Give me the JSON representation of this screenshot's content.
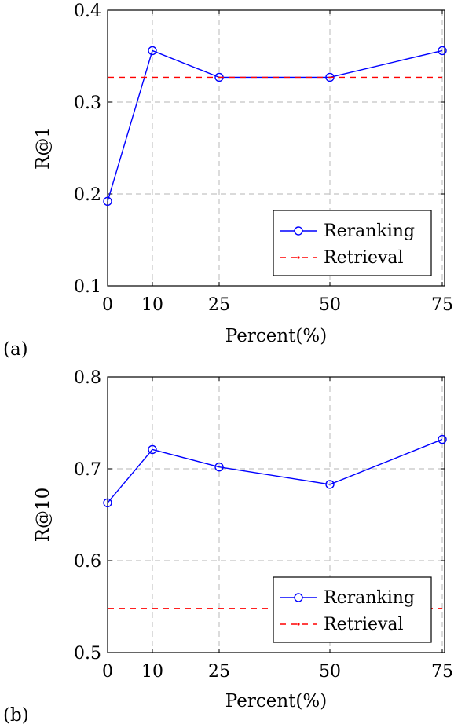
{
  "chart_data": [
    {
      "type": "line",
      "panel_label": "(a)",
      "xlabel": "Percent(%)",
      "ylabel": "R@1",
      "x": [
        0,
        10,
        25,
        50,
        75
      ],
      "x_ticks": [
        "0",
        "10",
        "25",
        "50",
        "75"
      ],
      "x_ticks_values": [
        0,
        10,
        25,
        50,
        75
      ],
      "y_ticks": [
        "0.1",
        "0.2",
        "0.3",
        "0.4"
      ],
      "y_ticks_values": [
        0.1,
        0.2,
        0.3,
        0.4
      ],
      "ylim": [
        0.1,
        0.4
      ],
      "x_scale": "ordinal",
      "grid": true,
      "legend_position": "bottom-right",
      "series": [
        {
          "name": "Reranking",
          "values": [
            0.192,
            0.356,
            0.327,
            0.327,
            0.356
          ],
          "color": "#0000ff",
          "style": "solid",
          "marker": "circle"
        },
        {
          "name": "Retrieval",
          "values": [
            0.327,
            0.327,
            0.327,
            0.327,
            0.327
          ],
          "color": "#ff0000",
          "style": "dashed",
          "marker": "none"
        }
      ]
    },
    {
      "type": "line",
      "panel_label": "(b)",
      "xlabel": "Percent(%)",
      "ylabel": "R@10",
      "x": [
        0,
        10,
        25,
        50,
        75
      ],
      "x_ticks": [
        "0",
        "10",
        "25",
        "50",
        "75"
      ],
      "x_ticks_values": [
        0,
        10,
        25,
        50,
        75
      ],
      "y_ticks": [
        "0.5",
        "0.6",
        "0.7",
        "0.8"
      ],
      "y_ticks_values": [
        0.5,
        0.6,
        0.7,
        0.8
      ],
      "ylim": [
        0.5,
        0.8
      ],
      "x_scale": "ordinal",
      "grid": true,
      "legend_position": "bottom-right",
      "series": [
        {
          "name": "Reranking",
          "values": [
            0.663,
            0.721,
            0.702,
            0.683,
            0.732
          ],
          "color": "#0000ff",
          "style": "solid",
          "marker": "circle"
        },
        {
          "name": "Retrieval",
          "values": [
            0.548,
            0.548,
            0.548,
            0.548,
            0.548
          ],
          "color": "#ff0000",
          "style": "dashed",
          "marker": "none"
        }
      ]
    }
  ]
}
